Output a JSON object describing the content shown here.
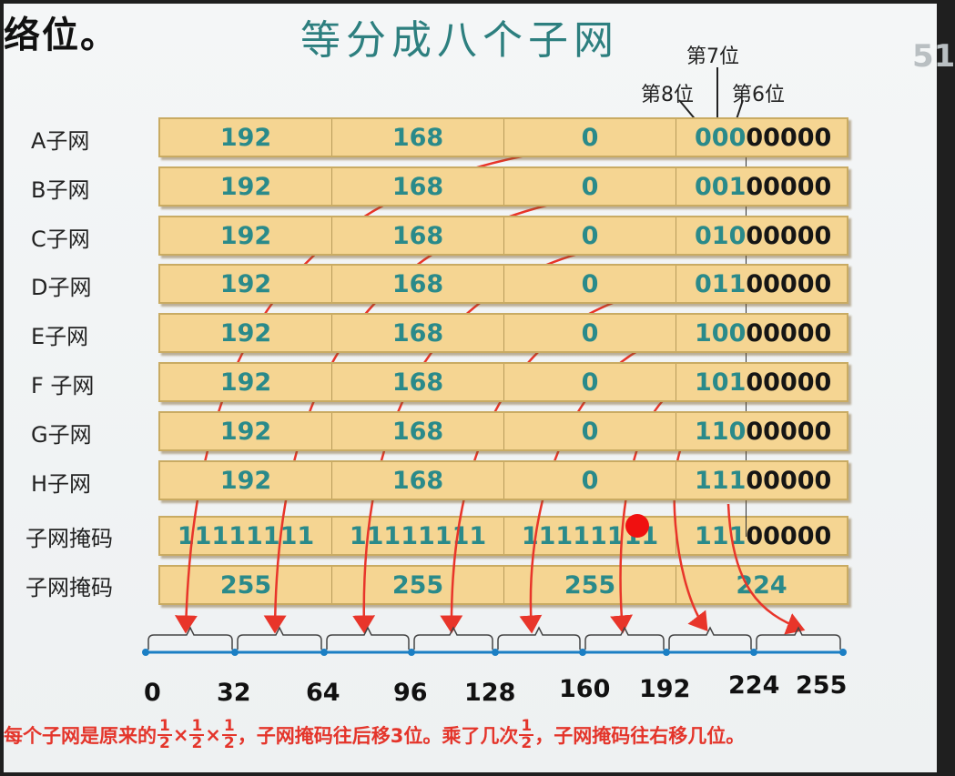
{
  "header": {
    "fragment_text": "络位。",
    "title": "等分成八个子网",
    "page_number": "51"
  },
  "bit_labels": {
    "bit7": "第7位",
    "bit8": "第8位",
    "bit6": "第6位"
  },
  "rows": [
    {
      "label": "A子网",
      "octet1": "192",
      "octet2": "168",
      "octet3": "0",
      "subnet_bits": "000",
      "host_bits": "00000"
    },
    {
      "label": "B子网",
      "octet1": "192",
      "octet2": "168",
      "octet3": "0",
      "subnet_bits": "001",
      "host_bits": "00000"
    },
    {
      "label": "C子网",
      "octet1": "192",
      "octet2": "168",
      "octet3": "0",
      "subnet_bits": "010",
      "host_bits": "00000"
    },
    {
      "label": "D子网",
      "octet1": "192",
      "octet2": "168",
      "octet3": "0",
      "subnet_bits": "011",
      "host_bits": "00000"
    },
    {
      "label": "E子网",
      "octet1": "192",
      "octet2": "168",
      "octet3": "0",
      "subnet_bits": "100",
      "host_bits": "00000"
    },
    {
      "label": "F 子网",
      "octet1": "192",
      "octet2": "168",
      "octet3": "0",
      "subnet_bits": "101",
      "host_bits": "00000"
    },
    {
      "label": "G子网",
      "octet1": "192",
      "octet2": "168",
      "octet3": "0",
      "subnet_bits": "110",
      "host_bits": "00000"
    },
    {
      "label": "H子网",
      "octet1": "192",
      "octet2": "168",
      "octet3": "0",
      "subnet_bits": "111",
      "host_bits": "00000"
    }
  ],
  "mask_binary": {
    "label": "子网掩码",
    "octet1": "11111111",
    "octet2": "11111111",
    "octet3": "11111111",
    "octet4_green": "111",
    "octet4_black": "00000"
  },
  "mask_decimal": {
    "label": "子网掩码",
    "octet1": "255",
    "octet2": "255",
    "octet3": "255",
    "octet4": "224"
  },
  "axis": {
    "ticks": [
      "0",
      "32",
      "64",
      "96",
      "128",
      "160",
      "192",
      "224",
      "255"
    ]
  },
  "note": {
    "part1": "每个子网是原来的",
    "frac_num": "1",
    "frac_den": "2",
    "times": "×",
    "part2": "，子网掩码往后移3位。乘了几次",
    "part3": "，子网掩码往右移几位。"
  },
  "colors": {
    "cell_fill": "#f5d592",
    "teal_text": "#2a8a8a",
    "arrow_red": "#e8352a",
    "axis_blue": "#1b7fc4",
    "title_teal": "#2d7f7f"
  }
}
